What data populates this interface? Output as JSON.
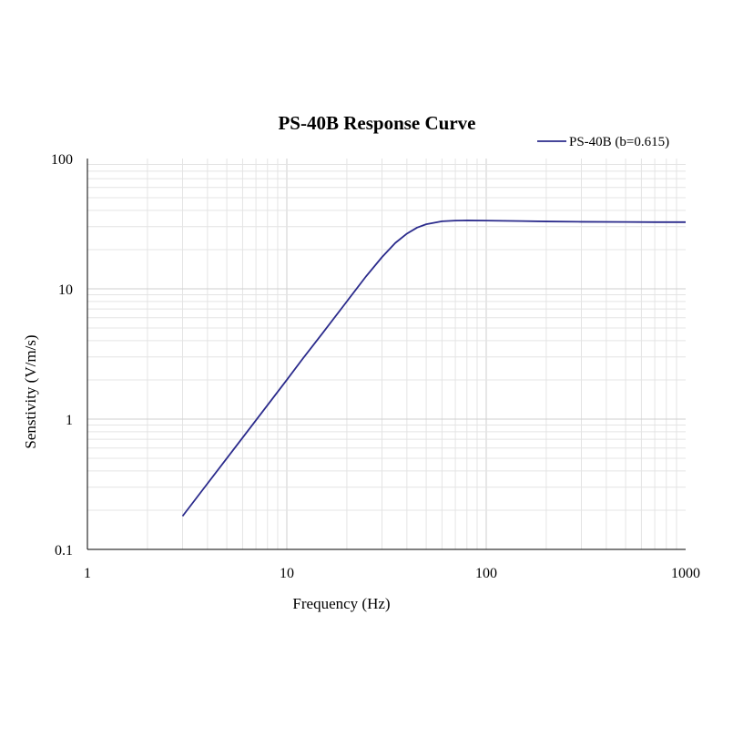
{
  "chart_data": {
    "type": "line",
    "title": "PS-40B Response Curve",
    "xlabel": "Frequency (Hz)",
    "ylabel": "Senstivity (V/m/s)",
    "x_scale": "log",
    "y_scale": "log",
    "xlim": [
      1,
      1000
    ],
    "ylim": [
      0.1,
      100
    ],
    "x_ticks": [
      "1",
      "10",
      "100",
      "1000"
    ],
    "y_ticks": [
      "100",
      "10",
      "1",
      "0.1"
    ],
    "grid": true,
    "legend_position": "top-right",
    "series": [
      {
        "name": "PS-40B (b=0.615)",
        "color": "#2b2b8c",
        "x": [
          3,
          4,
          5,
          6,
          8,
          10,
          12,
          15,
          20,
          25,
          30,
          35,
          40,
          45,
          50,
          60,
          70,
          80,
          100,
          150,
          200,
          300,
          500,
          700,
          1000
        ],
        "y": [
          0.18,
          0.32,
          0.5,
          0.72,
          1.28,
          2.0,
          2.9,
          4.5,
          8.0,
          12.5,
          17.5,
          22.5,
          26.5,
          29.5,
          31.3,
          33.0,
          33.4,
          33.5,
          33.4,
          33.1,
          32.9,
          32.7,
          32.6,
          32.5,
          32.5
        ]
      }
    ]
  }
}
